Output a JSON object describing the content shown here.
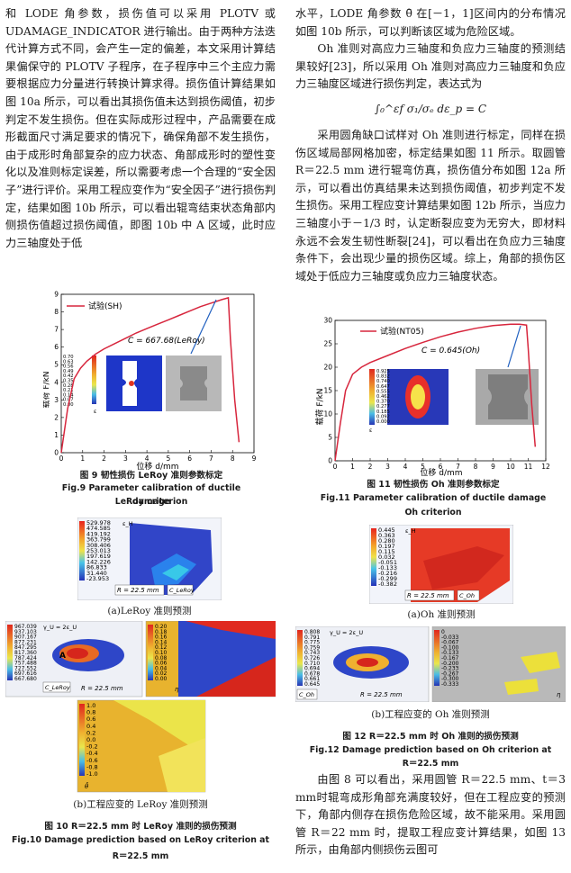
{
  "left": {
    "intro_text": "和 LODE 角参数，损伤值可以采用 PLOTV 或 UDAMAGE_INDICATOR 进行输出。由于两种方法迭代计算方式不同，会产生一定的偏差，本文采用计算结果偏保守的 PLOTV 子程序，在子程序中三个主应力需要根据应力分量进行转换计算求得。损伤值计算结果如图 10a 所示，可以看出其损伤值未达到损伤阈值，初步判定不发生损伤。但在实际成形过程中，产品需要在成形截面尺寸满足要求的情况下，确保角部不发生损伤，由于成形时角部复杂的应力状态、角部成形时的塑性变化以及准则标定误差，所以需要考虑一个合理的“安全因子”进行评价。采用工程应变作为“安全因子”进行损伤判定，结果如图 10b 所示，可以看出辊弯结束状态角部内侧损伤值超过损伤阈值，即图 10b 中 A 区域，此时应力三轴度处于低",
    "fig9": {
      "legend": "试验(SH)",
      "c_label": "C = 667.68(LeRoy)",
      "ylabel": "载荷 F/kN",
      "xlabel": "位移 d/mm",
      "caption_cn": "图 9   韧性损伤 LeRoy 准则参数标定",
      "caption_en_1": "Fig.9   Parameter calibration of ductile damage",
      "caption_en_2": "LeRoy criterion",
      "colorbar": [
        "0.70",
        "0.63",
        "0.56",
        "0.49",
        "0.42",
        "0.35",
        "0.28",
        "0.21",
        "0.14",
        "0.07",
        "0.00"
      ],
      "colorbar_unit": "ε"
    },
    "fig10a": {
      "colorbar": [
        "529.978",
        "474.585",
        "419.192",
        "363.799",
        "308.406",
        "253.013",
        "197.619",
        "142.226",
        "86.833",
        "31.440",
        "-23.953"
      ],
      "colorbar_unit": "ε_H",
      "r_label": "R = 22.5 mm",
      "c_label": "C_LeRoy",
      "sub_caption": "(a)LeRoy 准则预测"
    },
    "fig10b": {
      "colorbar_1": [
        "967.039",
        "937.103",
        "907.167",
        "877.231",
        "847.295",
        "817.360",
        "787.424",
        "757.488",
        "727.552",
        "697.616",
        "667.680"
      ],
      "colorbar_1_unit": "γ_U = 2ε_U",
      "marker_a": "A",
      "c_label": "C_LeRoy",
      "r_label": "R = 22.5 mm",
      "colorbar_2": [
        "0.20",
        "0.18",
        "0.16",
        "0.14",
        "0.12",
        "0.10",
        "0.08",
        "0.06",
        "0.04",
        "0.02",
        "0.00"
      ],
      "colorbar_2_unit": "η",
      "colorbar_3": [
        "1.0",
        "0.8",
        "0.6",
        "0.4",
        "0.2",
        "0.0",
        "-0.2",
        "-0.4",
        "-0.6",
        "-0.8",
        "-1.0"
      ],
      "colorbar_3_unit": "θ̄",
      "sub_caption": "(b)工程应变的 LeRoy 准则预测"
    },
    "fig10_caption_cn": "图 10   R＝22.5 mm 时 LeRoy 准则的损伤预测",
    "fig10_caption_en_1": "Fig.10   Damage prediction based on LeRoy criterion at",
    "fig10_caption_en_2": "R＝22.5 mm"
  },
  "right": {
    "top_text": "水平，LODE 角参数 θ̄ 在[－1，1]区间内的分布情况如图 10b 所示，可以判断该区域为危险区域。",
    "oh_text": "Oh 准则对高应力三轴度和负应力三轴度的预测结果较好[23]，所以采用 Oh 准则对高应力三轴度和负应力三轴度区域进行损伤判定，表达式为",
    "formula": "∫₀^εf  σ₁/σₑ dε_p = C",
    "calib_text": "采用圆角缺口试样对 Oh 准则进行标定，同样在损伤区域局部网格加密，标定结果如图 11 所示。取圆管 R＝22.5 mm 进行辊弯仿真，损伤值分布如图 12a 所示，可以看出仿真结果未达到损伤阈值，初步判定不发生损伤。采用工程应变计算结果如图 12b 所示，当应力三轴度小于－1/3 时，认定断裂应变为无穷大，即材料永远不会发生韧性断裂[24]，可以看出在负应力三轴度条件下，会出现少量的损伤区域。综上，角部的损伤区域处于低应力三轴度或负应力三轴度状态。",
    "fig11": {
      "legend": "试验(NT05)",
      "c_label": "C = 0.645(Oh)",
      "ylabel": "载荷 F/kN",
      "xlabel": "位移 d/mm",
      "caption_cn": "图 11   韧性损伤 Oh 准则参数标定",
      "caption_en_1": "Fig.11   Parameter calibration of ductile damage",
      "caption_en_2": "Oh criterion",
      "colorbar": [
        "0.925",
        "0.832",
        "0.740",
        "0.647",
        "0.555",
        "0.462",
        "0.370",
        "0.277",
        "0.185",
        "0.092",
        "0.000"
      ],
      "colorbar_unit": "ε"
    },
    "fig12a": {
      "colorbar": [
        "0.445",
        "0.363",
        "0.280",
        "0.197",
        "0.115",
        "0.032",
        "-0.051",
        "-0.133",
        "-0.216",
        "-0.299",
        "-0.382"
      ],
      "colorbar_unit": "ε_H",
      "r_label": "R = 22.5 mm",
      "c_label": "C_Oh",
      "sub_caption": "(a)Oh 准则预测"
    },
    "fig12b": {
      "colorbar_1": [
        "0.808",
        "0.791",
        "0.775",
        "0.759",
        "0.743",
        "0.726",
        "0.710",
        "0.694",
        "0.678",
        "0.661",
        "0.645"
      ],
      "colorbar_1_unit": "γ_U = 2ε_U",
      "c_label": "C_Oh",
      "r_label": "R = 22.5 mm",
      "colorbar_2": [
        "0",
        "-0.033",
        "-0.067",
        "-0.100",
        "-0.133",
        "-0.167",
        "-0.200",
        "-0.233",
        "-0.267",
        "-0.300",
        "-0.333"
      ],
      "colorbar_2_unit": "η",
      "sub_caption": "(b)工程应变的 Oh 准则预测"
    },
    "fig12_caption_cn": "图 12   R＝22.5 mm 时 Oh 准则的损伤预测",
    "fig12_caption_en_1": "Fig.12   Damage prediction based on Oh criterion at",
    "fig12_caption_en_2": "R＝22.5 mm",
    "bottom_text": "由图 8 可以看出，采用圆管 R＝22.5 mm、t＝3 mm时辊弯成形角部充满度较好，但在工程应变的预测下，角部内侧存在损伤危险区域，故不能采用。采用圆管 R＝22 mm 时，提取工程应变计算结果，如图 13 所示，由角部内侧损伤云图可"
  },
  "chart_data": [
    {
      "type": "line",
      "title": "",
      "xlabel": "位移 d/mm",
      "ylabel": "载荷 F/kN",
      "xlim": [
        0,
        9
      ],
      "ylim": [
        0,
        9
      ],
      "xticks": [
        0,
        1,
        2,
        3,
        4,
        5,
        6,
        7,
        8,
        9
      ],
      "yticks": [
        0,
        1,
        2,
        3,
        4,
        5,
        6,
        7,
        8,
        9
      ],
      "series": [
        {
          "name": "试验(SH)",
          "x": [
            0,
            0.3,
            0.6,
            0.9,
            1.2,
            1.6,
            2.0,
            2.5,
            3.0,
            3.5,
            4.0,
            4.5,
            5.0,
            5.5,
            6.0,
            6.5,
            7.0,
            7.5,
            7.8,
            7.9,
            8.1,
            8.3
          ],
          "y": [
            0,
            2.5,
            4.2,
            4.8,
            5.2,
            5.6,
            5.9,
            6.2,
            6.5,
            6.8,
            7.05,
            7.3,
            7.55,
            7.8,
            8.05,
            8.3,
            8.5,
            8.7,
            8.8,
            6.5,
            3.0,
            0.6
          ]
        }
      ]
    },
    {
      "type": "line",
      "title": "",
      "xlabel": "位移 d/mm",
      "ylabel": "载荷 F/kN",
      "xlim": [
        0,
        12
      ],
      "ylim": [
        0,
        30
      ],
      "xticks": [
        0,
        1,
        2,
        3,
        4,
        5,
        6,
        7,
        8,
        9,
        10,
        11,
        12
      ],
      "yticks": [
        0,
        5,
        10,
        15,
        20,
        25,
        30
      ],
      "series": [
        {
          "name": "试验(NT05)",
          "x": [
            0,
            0.3,
            0.6,
            1.0,
            1.5,
            2.0,
            3.0,
            4.0,
            5.0,
            6.0,
            7.0,
            8.0,
            9.0,
            10.0,
            10.5,
            10.9,
            11.0,
            11.2,
            11.4
          ],
          "y": [
            0,
            8,
            15,
            18.5,
            20.0,
            21.0,
            22.5,
            24.0,
            25.3,
            26.5,
            27.5,
            28.3,
            28.9,
            29.2,
            29.2,
            29.0,
            24.0,
            12.0,
            3.0
          ]
        }
      ]
    }
  ]
}
